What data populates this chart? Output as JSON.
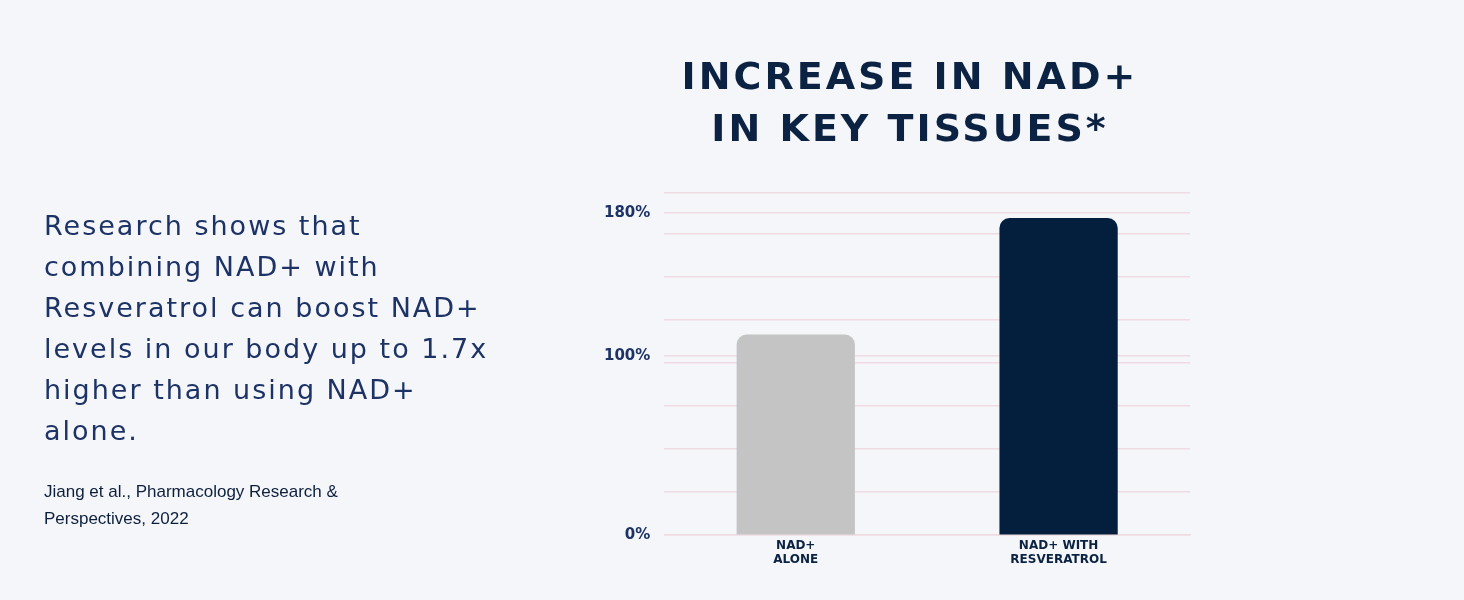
{
  "chart_data": {
    "type": "bar",
    "title": "INCREASE IN NAD+ IN KEY TISSUES*",
    "categories": [
      "NAD+ ALONE",
      "NAD+ WITH RESVERATROL"
    ],
    "values": [
      112,
      177
    ],
    "colors": [
      "#c4c4c4",
      "#041e3d"
    ],
    "ylim": [
      0,
      191
    ],
    "yticks": [
      {
        "value": 0,
        "label": "0%"
      },
      {
        "value": 24,
        "label": null
      },
      {
        "value": 48,
        "label": null
      },
      {
        "value": 72,
        "label": null
      },
      {
        "value": 96,
        "label": null
      },
      {
        "value": 100,
        "label": "100%"
      },
      {
        "value": 120,
        "label": null
      },
      {
        "value": 144,
        "label": null
      },
      {
        "value": 168,
        "label": null
      },
      {
        "value": 180,
        "label": "180%"
      },
      {
        "value": 191,
        "label": null
      }
    ],
    "grid": "y",
    "legend": false,
    "annotations": [
      "Research shows that combining NAD+ with Resveratrol can boost NAD+ levels in our body up to 1.7x higher than using NAD+ alone.",
      "Jiang et al., Pharmacology Research & Perspectives, 2022"
    ]
  }
}
